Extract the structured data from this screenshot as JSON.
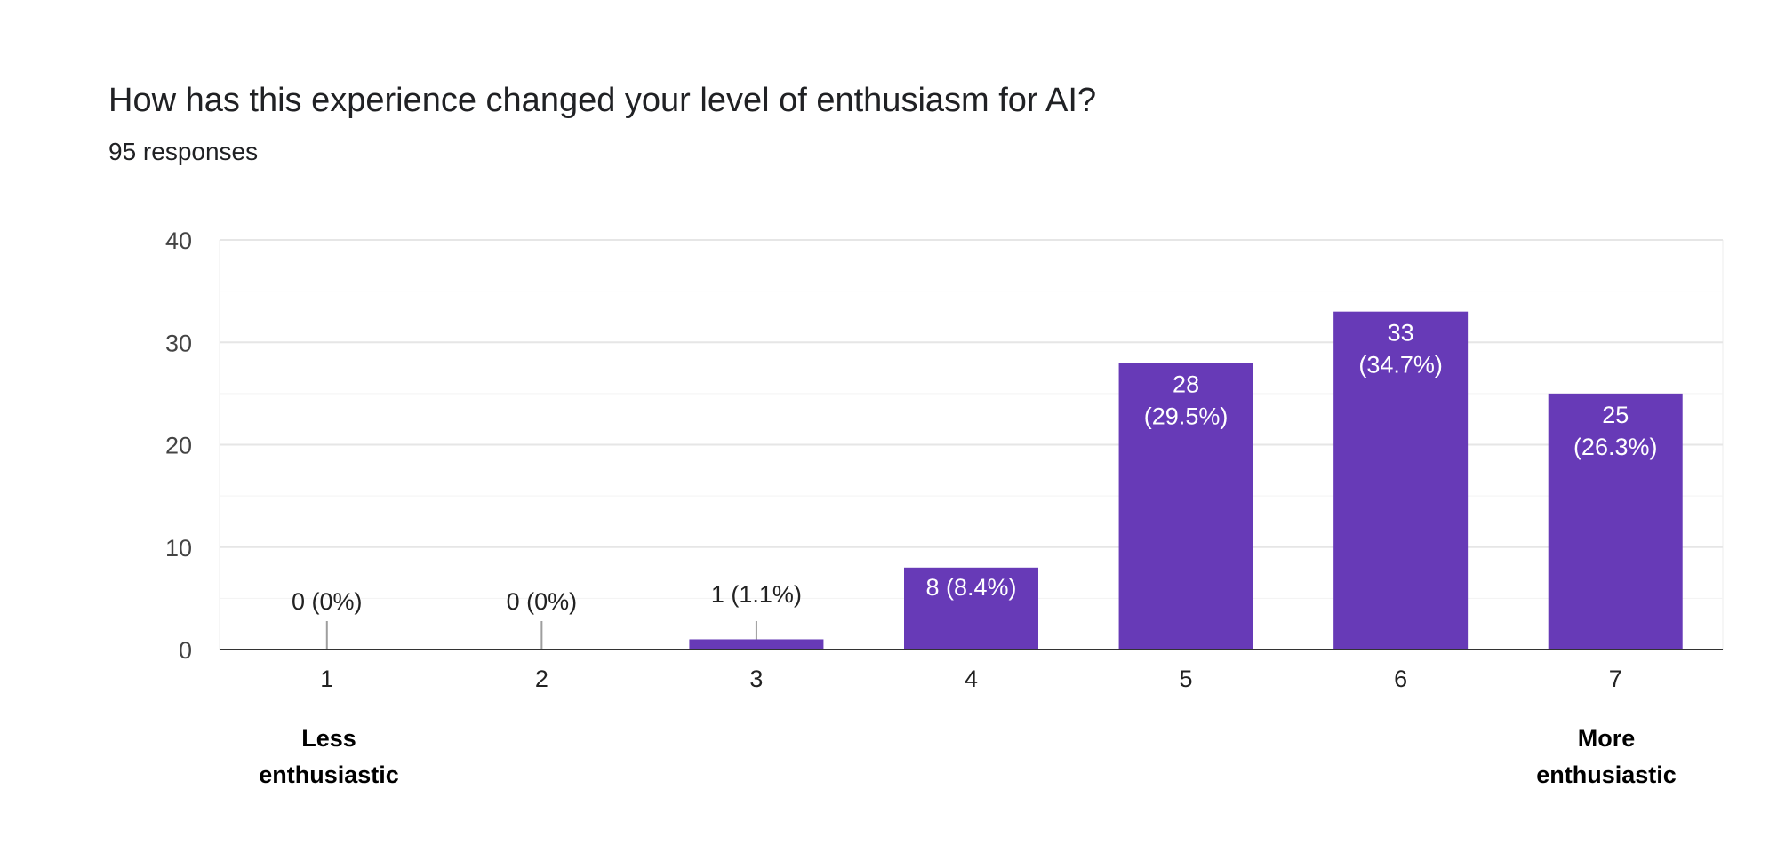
{
  "title": "How has this experience changed your level of enthusiasm for AI?",
  "subtitle": "95 responses",
  "scale_labels": {
    "left": "Less\nenthusiastic",
    "right": "More\nenthusiastic"
  },
  "chart_data": {
    "type": "bar",
    "title": "How has this experience changed your level of enthusiasm for AI?",
    "subtitle": "95 responses",
    "categories": [
      "1",
      "2",
      "3",
      "4",
      "5",
      "6",
      "7"
    ],
    "values": [
      0,
      0,
      1,
      8,
      28,
      33,
      25
    ],
    "data_labels": [
      "0 (0%)",
      "0 (0%)",
      "1 (1.1%)",
      "8 (8.4%)",
      "28 (29.5%)",
      "33 (34.7%)",
      "25 (26.3%)"
    ],
    "ylim": [
      0,
      40
    ],
    "yticks": [
      0,
      10,
      20,
      30,
      40
    ],
    "grid": true,
    "bar_color": "#673ab7",
    "legend": "none"
  }
}
